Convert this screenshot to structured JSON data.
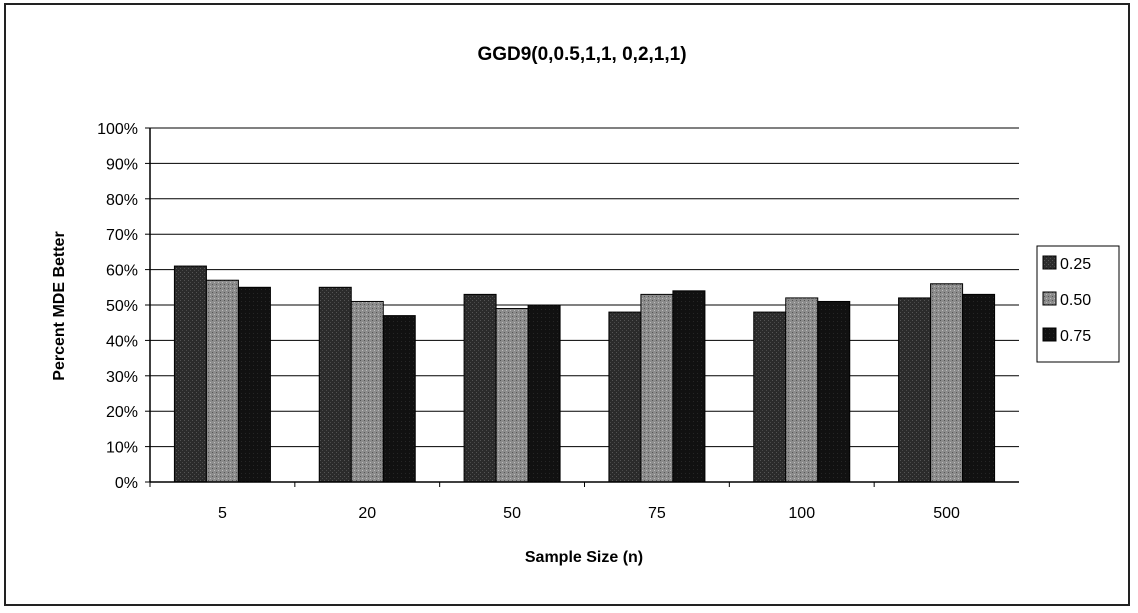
{
  "chart_data": {
    "type": "bar",
    "title": "GGD9(0,0.5,1,1, 0,2,1,1)",
    "xlabel": "Sample Size (n)",
    "ylabel": "Percent MDE Better",
    "categories": [
      "5",
      "20",
      "50",
      "75",
      "100",
      "500"
    ],
    "series": [
      {
        "name": "0.25",
        "values": [
          61,
          55,
          53,
          48,
          48,
          52
        ],
        "color": "#2b2b2b"
      },
      {
        "name": "0.50",
        "values": [
          57,
          51,
          49,
          53,
          52,
          56
        ],
        "color": "#8c8c8c"
      },
      {
        "name": "0.75",
        "values": [
          55,
          47,
          50,
          54,
          51,
          53
        ],
        "color": "#111111"
      }
    ],
    "ylim": [
      0,
      100
    ],
    "yticks": [
      "0%",
      "10%",
      "20%",
      "30%",
      "40%",
      "50%",
      "60%",
      "70%",
      "80%",
      "90%",
      "100%"
    ],
    "grid": true,
    "legend_position": "right"
  }
}
